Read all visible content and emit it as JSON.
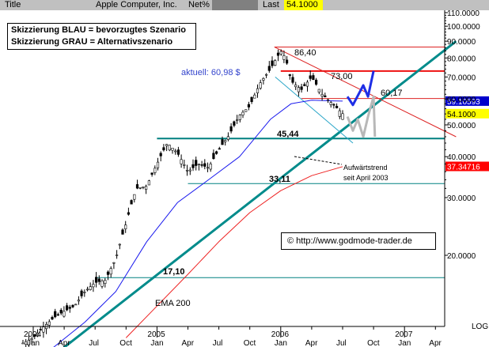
{
  "header": {
    "title": "Title",
    "instrument": "Apple Computer, Inc.",
    "netpct_label": "Net%",
    "last_label": "Last",
    "last_value": "54.1000",
    "colors": {
      "bar": "#c0c0c0",
      "netpct_box": "#808080",
      "last_box": "#ffff00"
    }
  },
  "legend": {
    "line1": "Skizzierung BLAU = bevorzugtes Szenario",
    "line2": "Skizzierung GRAU = Alternativszenario"
  },
  "current_label": "aktuell: 60,98 $",
  "copyright": "© http://www.godmode-trader.de",
  "chart_data": {
    "type": "candlestick",
    "y_scale": "log",
    "ylim": [
      9.7,
      118
    ],
    "y_ticks": [
      {
        "value": 110,
        "label": "110.0000"
      },
      {
        "value": 100,
        "label": "100.0000"
      },
      {
        "value": 90,
        "label": "90.0000"
      },
      {
        "value": 80,
        "label": "80.0000"
      },
      {
        "value": 70,
        "label": "70.0000"
      },
      {
        "value": 60,
        "label": "60.0000"
      },
      {
        "value": 50,
        "label": "50.0000"
      },
      {
        "value": 40,
        "label": "40.0000"
      },
      {
        "value": 30,
        "label": "30.0000"
      },
      {
        "value": 20,
        "label": "20.0000"
      }
    ],
    "y_axis_footer": "LOG",
    "x_ticks": [
      {
        "date": "2004-01",
        "month": "Jan",
        "year": "2004"
      },
      {
        "date": "2004-04",
        "month": "Apr"
      },
      {
        "date": "2004-07",
        "month": "Jul"
      },
      {
        "date": "2004-10",
        "month": "Oct"
      },
      {
        "date": "2005-01",
        "month": "Jan",
        "year": "2005"
      },
      {
        "date": "2005-04",
        "month": "Apr"
      },
      {
        "date": "2005-07",
        "month": "Jul"
      },
      {
        "date": "2005-10",
        "month": "Oct"
      },
      {
        "date": "2006-01",
        "month": "Jan",
        "year": "2006"
      },
      {
        "date": "2006-04",
        "month": "Apr"
      },
      {
        "date": "2006-07",
        "month": "Jul"
      },
      {
        "date": "2006-10",
        "month": "Oct"
      },
      {
        "date": "2007-01",
        "month": "Jan",
        "year": "2007"
      },
      {
        "date": "2007-04",
        "month": "Apr"
      }
    ],
    "price_series": [
      [
        "2003-12",
        10.8
      ],
      [
        "2004-01",
        11.2
      ],
      [
        "2004-02",
        12.1
      ],
      [
        "2004-03",
        12.9
      ],
      [
        "2004-04",
        13.5
      ],
      [
        "2004-05",
        14.0
      ],
      [
        "2004-06",
        15.5
      ],
      [
        "2004-07",
        16.5
      ],
      [
        "2004-08",
        16.8
      ],
      [
        "2004-09",
        19.5
      ],
      [
        "2004-10",
        25.0
      ],
      [
        "2004-11",
        32.0
      ],
      [
        "2004-12",
        32.5
      ],
      [
        "2005-01",
        38.0
      ],
      [
        "2005-02",
        44.0
      ],
      [
        "2005-03",
        41.0
      ],
      [
        "2005-04",
        36.0
      ],
      [
        "2005-05",
        38.0
      ],
      [
        "2005-06",
        37.0
      ],
      [
        "2005-07",
        42.0
      ],
      [
        "2005-08",
        46.5
      ],
      [
        "2005-09",
        53.5
      ],
      [
        "2005-10",
        57.0
      ],
      [
        "2005-11",
        67.0
      ],
      [
        "2005-12",
        74.0
      ],
      [
        "2006-01",
        84.0
      ],
      [
        "2006-01-15",
        80.0
      ],
      [
        "2006-02",
        68.0
      ],
      [
        "2006-03",
        64.0
      ],
      [
        "2006-04",
        70.0
      ],
      [
        "2006-05",
        62.0
      ],
      [
        "2006-06",
        58.0
      ],
      [
        "2006-07",
        54.1
      ]
    ],
    "ema_20": [
      [
        "2004-02",
        9.9
      ],
      [
        "2004-06",
        12.5
      ],
      [
        "2004-09",
        15.5
      ],
      [
        "2004-12",
        22.0
      ],
      [
        "2005-03",
        29.0
      ],
      [
        "2005-06",
        34.0
      ],
      [
        "2005-09",
        40.0
      ],
      [
        "2005-12",
        52.0
      ],
      [
        "2006-02",
        58.0
      ],
      [
        "2006-04",
        59.5
      ],
      [
        "2006-06",
        59.2
      ],
      [
        "2006-07",
        59.1
      ]
    ],
    "ema_200": [
      [
        "2004-10",
        11.2
      ],
      [
        "2005-01",
        14.0
      ],
      [
        "2005-04",
        17.5
      ],
      [
        "2005-07",
        22.0
      ],
      [
        "2005-10",
        27.0
      ],
      [
        "2006-01",
        31.5
      ],
      [
        "2006-04",
        35.0
      ],
      [
        "2006-07",
        37.3
      ]
    ],
    "ema_200_label": "EMA 200",
    "levels": [
      {
        "name": "res-86",
        "value": 86.4,
        "label": "86,40",
        "color": "#dd2222"
      },
      {
        "name": "res-73",
        "value": 73.0,
        "label": "73,00",
        "color": "#ee1111"
      },
      {
        "name": "res-60",
        "value": 60.17,
        "label": "60,17",
        "color": "#dd2222"
      },
      {
        "name": "sup-45",
        "value": 45.44,
        "label": "45,44",
        "color": "#008080"
      },
      {
        "name": "sup-33",
        "value": 33.11,
        "label": "33,11",
        "color": "#008080"
      },
      {
        "name": "sup-17",
        "value": 17.1,
        "label": "17,10",
        "color": "#008080"
      }
    ],
    "uptrend_label": [
      "Aufwärtstrend",
      "seit April 2003"
    ],
    "uptrend_line": [
      [
        "2004-03",
        9.9
      ],
      [
        "2007-06",
        90.0
      ]
    ],
    "resistance_trend": [
      [
        "2006-01",
        86.4
      ],
      [
        "2007-06",
        46.0
      ]
    ],
    "channel_line": [
      [
        "2006-02",
        70.0
      ],
      [
        "2006-08",
        44.0
      ]
    ],
    "blue_scenario": [
      [
        "2006-07-15",
        61.0
      ],
      [
        "2006-08",
        57.5
      ],
      [
        "2006-09",
        66.0
      ],
      [
        "2006-09-15",
        61.0
      ],
      [
        "2006-10",
        73.0
      ]
    ],
    "gray_scenario": [
      [
        "2006-07-15",
        53.0
      ],
      [
        "2006-08",
        48.0
      ],
      [
        "2006-08-15",
        52.0
      ],
      [
        "2006-09",
        46.0
      ],
      [
        "2006-09-15",
        53.0
      ],
      [
        "2006-10",
        61.0
      ],
      [
        "2006-10-05",
        46.0
      ]
    ],
    "right_badges": [
      {
        "value": 59.10593,
        "label": "59.10593",
        "color": "#0000cc",
        "text_color": "#ffffff"
      },
      {
        "value": 54.1,
        "label": "54.1000",
        "color": "#ffff00",
        "text_color": "#000000"
      },
      {
        "value": 37.34716,
        "label": "37.34716",
        "color": "#ff0000",
        "text_color": "#ffffff"
      }
    ]
  }
}
